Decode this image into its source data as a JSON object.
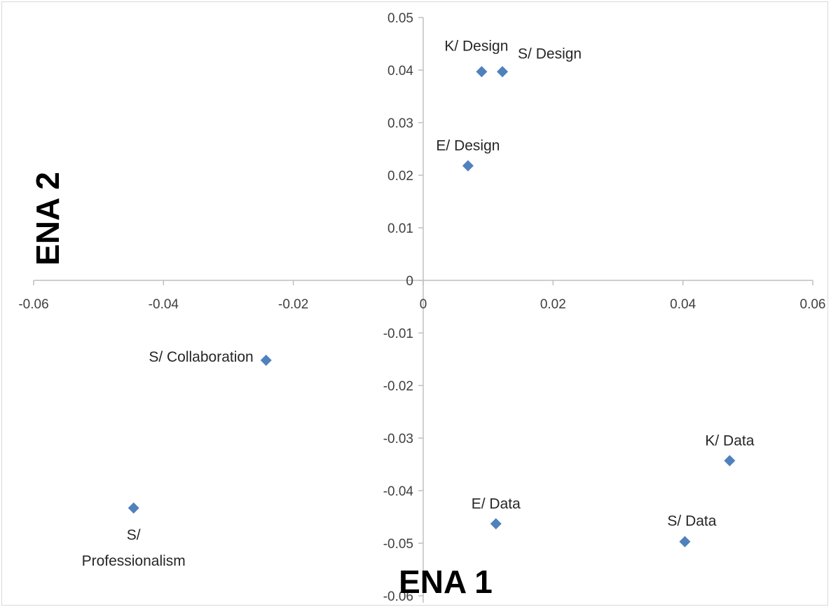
{
  "chart_data": {
    "type": "scatter",
    "title": "",
    "xlabel": "ENA 1",
    "ylabel": "ENA 2",
    "xlim": [
      -0.06,
      0.06
    ],
    "ylim": [
      -0.06,
      0.05
    ],
    "x_ticks": [
      -0.06,
      -0.04,
      -0.02,
      0,
      0.02,
      0.04,
      0.06
    ],
    "x_tick_labels": [
      "-0.06",
      "-0.04",
      "-0.02",
      "0",
      "0.02",
      "0.04",
      "0.06"
    ],
    "y_ticks": [
      0.05,
      0.04,
      0.03,
      0.02,
      0.01,
      0,
      -0.01,
      -0.02,
      -0.03,
      -0.04,
      -0.05,
      -0.06
    ],
    "y_tick_labels": [
      "0.05",
      "0.04",
      "0.03",
      "0.02",
      "0.01",
      "0",
      "-0.01",
      "-0.02",
      "-0.03",
      "-0.04",
      "-0.05",
      "-0.06"
    ],
    "grid": false,
    "marker_color": "#4f81bd",
    "points": [
      {
        "label": "K/ Design",
        "x": 0.009,
        "y": 0.0397,
        "label_pos": "above-left"
      },
      {
        "label": "S/ Design",
        "x": 0.0122,
        "y": 0.0397,
        "label_pos": "above-right"
      },
      {
        "label": "E/ Design",
        "x": 0.0069,
        "y": 0.0218,
        "label_pos": "above"
      },
      {
        "label": "S/ Collaboration",
        "x": -0.0242,
        "y": -0.0152,
        "label_pos": "left"
      },
      {
        "label": "S/ Professionalism",
        "x": -0.0446,
        "y": -0.0433,
        "label_pos": "below"
      },
      {
        "label": "K/ Data",
        "x": 0.0472,
        "y": -0.0343,
        "label_pos": "above"
      },
      {
        "label": "E/ Data",
        "x": 0.0112,
        "y": -0.0463,
        "label_pos": "above"
      },
      {
        "label": "S/ Data",
        "x": 0.0403,
        "y": -0.0497,
        "label_pos": "above-left"
      }
    ]
  }
}
